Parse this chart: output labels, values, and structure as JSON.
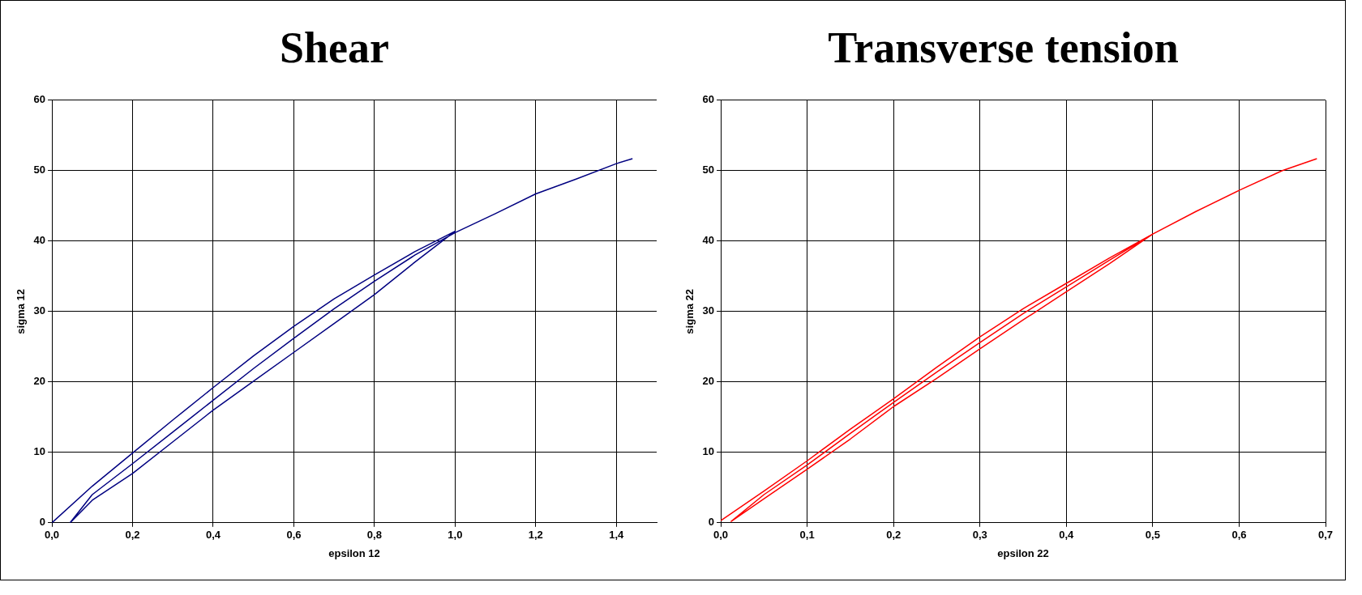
{
  "chart_data": [
    {
      "type": "line",
      "title": "Shear",
      "xlabel": "epsilon 12",
      "ylabel": "sigma 12",
      "grid": true,
      "marker": "none",
      "line_style": "solid",
      "xlim": [
        0,
        1.5
      ],
      "ylim": [
        0,
        60
      ],
      "xticks": [
        {
          "value": 0,
          "label": "0,0"
        },
        {
          "value": 0.2,
          "label": "0,2"
        },
        {
          "value": 0.4,
          "label": "0,4"
        },
        {
          "value": 0.6,
          "label": "0,6"
        },
        {
          "value": 0.8,
          "label": "0,8"
        },
        {
          "value": 1.0,
          "label": "1,0"
        },
        {
          "value": 1.2,
          "label": "1,2"
        },
        {
          "value": 1.4,
          "label": "1,4"
        }
      ],
      "yticks": [
        0,
        10,
        20,
        30,
        40,
        50,
        60
      ],
      "series": [
        {
          "color": "#000080",
          "x": [
            0,
            0.1,
            0.2,
            0.3,
            0.4,
            0.5,
            0.6,
            0.7,
            0.8,
            0.9,
            1.0,
            0.9,
            0.8,
            0.7,
            0.6,
            0.5,
            0.4,
            0.3,
            0.2,
            0.1,
            0.045,
            0.1,
            0.2,
            0.3,
            0.4,
            0.5,
            0.6,
            0.7,
            0.8,
            0.9,
            1.0,
            1.1,
            1.2,
            1.3,
            1.4,
            1.44
          ],
          "values": [
            0,
            5.2,
            9.9,
            14.6,
            19.2,
            23.7,
            27.9,
            31.8,
            35.2,
            38.5,
            41.4,
            37.0,
            32.4,
            28.3,
            24.2,
            20.1,
            16.0,
            11.5,
            7.0,
            3.2,
            0,
            4.0,
            8.4,
            12.9,
            17.4,
            21.9,
            26.2,
            30.4,
            34.3,
            38.0,
            41.2,
            43.9,
            46.7,
            48.8,
            51.0,
            51.7
          ]
        }
      ]
    },
    {
      "type": "line",
      "title": "Transverse tension",
      "xlabel": "epsilon 22",
      "ylabel": "sigma 22",
      "grid": true,
      "marker": "none",
      "line_style": "solid",
      "xlim": [
        0,
        0.7
      ],
      "ylim": [
        0,
        60
      ],
      "xticks": [
        {
          "value": 0,
          "label": "0,0"
        },
        {
          "value": 0.1,
          "label": "0,1"
        },
        {
          "value": 0.2,
          "label": "0,2"
        },
        {
          "value": 0.3,
          "label": "0,3"
        },
        {
          "value": 0.4,
          "label": "0,4"
        },
        {
          "value": 0.5,
          "label": "0,5"
        },
        {
          "value": 0.6,
          "label": "0,6"
        },
        {
          "value": 0.7,
          "label": "0,7"
        }
      ],
      "yticks": [
        0,
        10,
        20,
        30,
        40,
        50,
        60
      ],
      "series": [
        {
          "color": "#ff0000",
          "x": [
            0,
            0.05,
            0.1,
            0.15,
            0.2,
            0.25,
            0.3,
            0.35,
            0.4,
            0.45,
            0.5,
            0.45,
            0.4,
            0.35,
            0.3,
            0.25,
            0.2,
            0.15,
            0.1,
            0.05,
            0.012,
            0.05,
            0.1,
            0.15,
            0.2,
            0.25,
            0.3,
            0.35,
            0.4,
            0.45,
            0.5,
            0.55,
            0.6,
            0.65,
            0.69
          ],
          "values": [
            0.3,
            4.5,
            8.8,
            13.3,
            17.6,
            22.1,
            26.4,
            30.4,
            34.0,
            37.6,
            41.0,
            36.8,
            32.8,
            28.8,
            24.7,
            20.5,
            16.5,
            11.9,
            7.6,
            3.4,
            0.2,
            4.0,
            8.2,
            12.7,
            17.1,
            21.4,
            25.6,
            29.7,
            33.5,
            37.3,
            41.0,
            44.2,
            47.2,
            50.0,
            51.7
          ]
        }
      ]
    }
  ]
}
